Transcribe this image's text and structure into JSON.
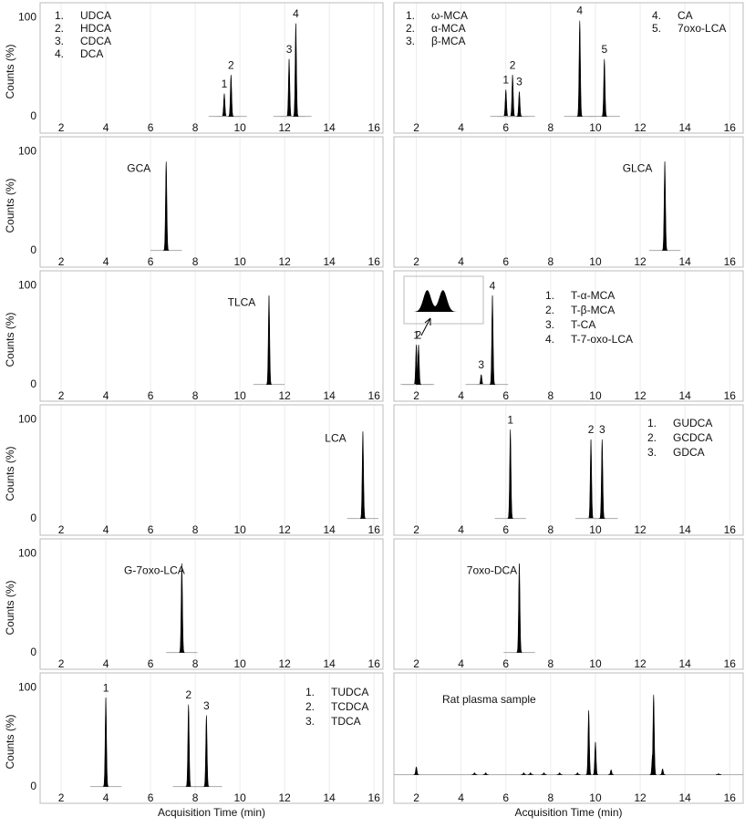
{
  "chart_data": [
    {
      "type": "chromatogram",
      "xlim": [
        1.06,
        16.4
      ],
      "xticks": [
        2,
        4,
        6,
        8,
        10,
        12,
        14,
        16
      ],
      "ylim": [
        -17,
        115
      ],
      "yticks": [
        0,
        100
      ],
      "grid": true,
      "ylabel": "Counts (%)",
      "legend": [
        {
          "number": "1.",
          "name": "UDCA"
        },
        {
          "number": "2.",
          "name": "HDCA"
        },
        {
          "number": "3.",
          "name": "CDCA"
        },
        {
          "number": "4.",
          "name": "DCA"
        }
      ],
      "legend_columns": 1,
      "x": [
        9.3,
        9.6,
        12.2,
        12.5
      ],
      "values": [
        23,
        42,
        58,
        94
      ],
      "peak_labels": [
        "1",
        "2",
        "3",
        "4"
      ]
    },
    {
      "type": "chromatogram",
      "xlim": [
        1.0,
        16.6
      ],
      "xticks": [
        2,
        4,
        6,
        8,
        10,
        12,
        14,
        16
      ],
      "ylim": [
        -17,
        115
      ],
      "grid": true,
      "legend": [
        {
          "number": "1.",
          "name": "ω-MCA"
        },
        {
          "number": "2.",
          "name": "α-MCA"
        },
        {
          "number": "3.",
          "name": "β-MCA"
        },
        {
          "number": "4.",
          "name": "CA"
        },
        {
          "number": "5.",
          "name": "7oxo-LCA"
        }
      ],
      "legend_columns": 2,
      "x": [
        6.0,
        6.3,
        6.6,
        9.3,
        10.4
      ],
      "values": [
        27,
        42,
        25,
        97,
        58
      ],
      "peak_labels": [
        "1",
        "2",
        "3",
        "4",
        "5"
      ]
    },
    {
      "type": "chromatogram",
      "xlim": [
        1.06,
        16.4
      ],
      "xticks": [
        2,
        4,
        6,
        8,
        10,
        12,
        14,
        16
      ],
      "ylim": [
        -17,
        115
      ],
      "yticks": [
        0,
        100
      ],
      "grid": true,
      "ylabel": "Counts (%)",
      "x": [
        6.7
      ],
      "values": [
        90
      ],
      "peak_labels": [
        "GCA"
      ]
    },
    {
      "type": "chromatogram",
      "xlim": [
        1.0,
        16.6
      ],
      "xticks": [
        2,
        4,
        6,
        8,
        10,
        12,
        14,
        16
      ],
      "ylim": [
        -17,
        115
      ],
      "grid": true,
      "x": [
        13.1
      ],
      "values": [
        90
      ],
      "peak_labels": [
        "GLCA"
      ]
    },
    {
      "type": "chromatogram",
      "xlim": [
        1.06,
        16.4
      ],
      "xticks": [
        2,
        4,
        6,
        8,
        10,
        12,
        14,
        16
      ],
      "ylim": [
        -17,
        115
      ],
      "yticks": [
        0,
        100
      ],
      "grid": true,
      "ylabel": "Counts (%)",
      "x": [
        11.3
      ],
      "values": [
        90
      ],
      "peak_labels": [
        "TLCA"
      ]
    },
    {
      "type": "chromatogram",
      "xlim": [
        1.0,
        16.6
      ],
      "xticks": [
        2,
        4,
        6,
        8,
        10,
        12,
        14,
        16
      ],
      "ylim": [
        -17,
        115
      ],
      "grid": true,
      "legend": [
        {
          "number": "1.",
          "name": "T-α-MCA"
        },
        {
          "number": "2.",
          "name": "T-β-MCA"
        },
        {
          "number": "3.",
          "name": "T-CA"
        },
        {
          "number": "4.",
          "name": "T-7-oxo-LCA"
        }
      ],
      "legend_columns": 1,
      "x": [
        2.0,
        2.1,
        4.9,
        5.4
      ],
      "values": [
        40,
        40,
        10,
        90
      ],
      "peak_labels": [
        "1",
        "2",
        "3",
        "4"
      ]
    },
    {
      "type": "chromatogram",
      "xlim": [
        1.06,
        16.4
      ],
      "xticks": [
        2,
        4,
        6,
        8,
        10,
        12,
        14,
        16
      ],
      "ylim": [
        -17,
        115
      ],
      "yticks": [
        0,
        100
      ],
      "grid": true,
      "ylabel": "Counts (%)",
      "x": [
        15.5
      ],
      "values": [
        88
      ],
      "peak_labels": [
        "LCA"
      ]
    },
    {
      "type": "chromatogram",
      "xlim": [
        1.0,
        16.6
      ],
      "xticks": [
        2,
        4,
        6,
        8,
        10,
        12,
        14,
        16
      ],
      "ylim": [
        -17,
        115
      ],
      "grid": true,
      "legend": [
        {
          "number": "1.",
          "name": "GUDCA"
        },
        {
          "number": "2.",
          "name": "GCDCA"
        },
        {
          "number": "3.",
          "name": "GDCA"
        }
      ],
      "legend_columns": 1,
      "x": [
        6.2,
        9.8,
        10.3
      ],
      "values": [
        90,
        80,
        80
      ],
      "peak_labels": [
        "1",
        "2",
        "3"
      ]
    },
    {
      "type": "chromatogram",
      "xlim": [
        1.06,
        16.4
      ],
      "xticks": [
        2,
        4,
        6,
        8,
        10,
        12,
        14,
        16
      ],
      "ylim": [
        -17,
        115
      ],
      "yticks": [
        0,
        100
      ],
      "grid": true,
      "ylabel": "Counts (%)",
      "x": [
        7.4
      ],
      "values": [
        90
      ],
      "peak_labels": [
        "G-7oxo-LCA"
      ]
    },
    {
      "type": "chromatogram",
      "xlim": [
        1.0,
        16.6
      ],
      "xticks": [
        2,
        4,
        6,
        8,
        10,
        12,
        14,
        16
      ],
      "ylim": [
        -17,
        115
      ],
      "grid": true,
      "x": [
        6.6
      ],
      "values": [
        90
      ],
      "peak_labels": [
        "7oxo-DCA"
      ]
    },
    {
      "type": "chromatogram",
      "xlim": [
        1.06,
        16.4
      ],
      "xticks": [
        2,
        4,
        6,
        8,
        10,
        12,
        14,
        16
      ],
      "ylim": [
        -17,
        115
      ],
      "yticks": [
        0,
        100
      ],
      "grid": true,
      "ylabel": "Counts (%)",
      "xlabel": "Acquisition Time (min)",
      "legend": [
        {
          "number": "1.",
          "name": "TUDCA"
        },
        {
          "number": "2.",
          "name": "TCDCA"
        },
        {
          "number": "3.",
          "name": "TDCA"
        }
      ],
      "legend_columns": 1,
      "x": [
        4.0,
        7.7,
        8.5
      ],
      "values": [
        90,
        83,
        72
      ],
      "peak_labels": [
        "1",
        "2",
        "3"
      ]
    },
    {
      "type": "chromatogram",
      "xlim": [
        1.0,
        16.6
      ],
      "xticks": [
        2,
        4,
        6,
        8,
        10,
        12,
        14,
        16
      ],
      "ylim": [
        -17,
        115
      ],
      "grid": true,
      "xlabel": "Acquisition Time (min)",
      "annotation": "Rat plasma sample",
      "baseline": 12,
      "x": [
        2.0,
        4.6,
        5.1,
        6.8,
        7.1,
        7.7,
        8.4,
        9.2,
        9.7,
        10.0,
        10.7,
        12.55,
        12.6,
        13.0,
        15.5
      ],
      "values": [
        20,
        14,
        14,
        14,
        14,
        14,
        14,
        14,
        77,
        45,
        17,
        32,
        93,
        18,
        13
      ]
    }
  ]
}
